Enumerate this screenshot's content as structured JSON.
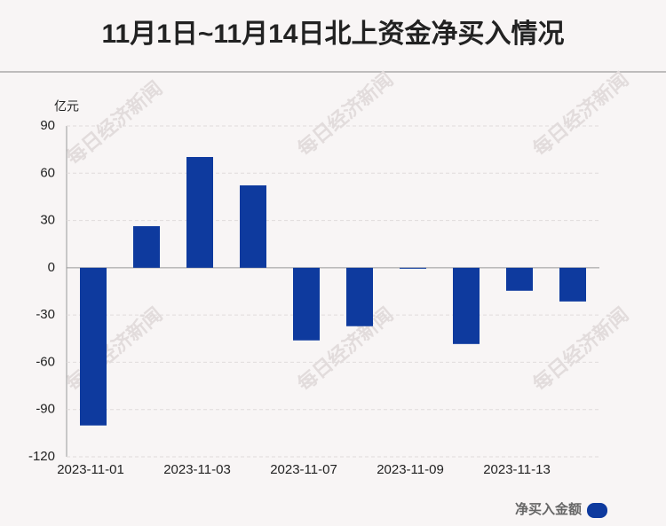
{
  "chart_data": {
    "type": "bar",
    "title": "11月1日~11月14日北上资金净买入情况",
    "y_unit": "亿元",
    "watermark": "每日经济新闻",
    "categories": [
      "2023-11-01",
      null,
      "2023-11-03",
      null,
      "2023-11-07",
      null,
      "2023-11-09",
      null,
      "2023-11-13",
      null
    ],
    "series": [
      {
        "name": "净买入金额",
        "color": "#0e3a9e",
        "values": [
          -100.1,
          26.4,
          70.3,
          52.3,
          -46.1,
          -37.1,
          -0.6,
          -48.4,
          -14.6,
          -21.4
        ]
      }
    ],
    "ylim": [
      -120,
      90
    ],
    "yticks": [
      -120,
      -90,
      -60,
      -30,
      0,
      30,
      60,
      90
    ],
    "grid": true,
    "legend": "bottom-right"
  }
}
